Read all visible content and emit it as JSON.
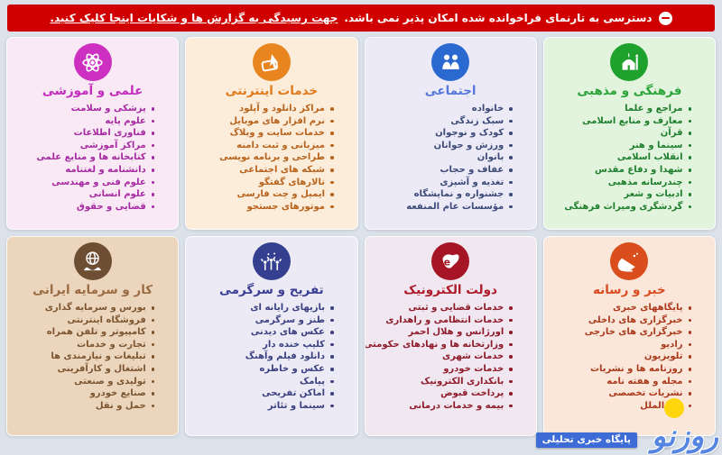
{
  "banner": {
    "message": "دسترسی به تارنمای فراخوانده شده امکان پذیر نمی باشد.",
    "link_text": "جهت رسیدگی به گزارش ها و شکایات اینجا کلیک کنید.",
    "background": "#d10000"
  },
  "categories": [
    {
      "title": "فرهنگی و مذهبی",
      "icon": "mosque-icon",
      "colors": {
        "bg": "#e3f4de",
        "circle": "#1fa12e",
        "title": "#2aa438",
        "item": "#1d7e2b"
      },
      "items": [
        "مراجع و علما",
        "معارف و منابع اسلامی",
        "قرآن",
        "سینما و هنر",
        "انقلاب اسلامی",
        "شهدا و دفاع مقدس",
        "چندرسانه مذهبی",
        "ادبیات و شعر",
        "گردشگری ومیراث فرهنگی"
      ]
    },
    {
      "title": "اجتماعی",
      "icon": "people-icon",
      "colors": {
        "bg": "#eceaf6",
        "circle": "#2a6ad0",
        "title": "#5577dc",
        "item": "#3c4a78"
      },
      "items": [
        "خانواده",
        "سبک زندگی",
        "کودک و نوجوان",
        "ورزش و جوانان",
        "بانوان",
        "عفاف و حجاب",
        "تغذیه و آشپزی",
        "جشنواره و نمایشگاه",
        "مؤسسات عام المنفعه"
      ]
    },
    {
      "title": "خدمات اینترنتی",
      "icon": "click-hand-icon",
      "colors": {
        "bg": "#fcecda",
        "circle": "#e8851f",
        "title": "#e2791a",
        "item": "#b8631c"
      },
      "items": [
        "مراکز دانلود و آپلود",
        "نرم افزار های موبایل",
        "خدمات سایت و وبلاگ",
        "میزبانی و ثبت دامنه",
        "طراحی و برنامه نویسی",
        "شبکه های اجتماعی",
        "تالارهای گفتگو",
        "ایمیل و چت فارسی",
        "موتورهای جستجو"
      ]
    },
    {
      "title": "علمی و آموزشی",
      "icon": "atom-icon",
      "colors": {
        "bg": "#f8e9f5",
        "circle": "#cd30c1",
        "title": "#c32cbe",
        "item": "#a62aa2"
      },
      "items": [
        "پزشکی و سلامت",
        "علوم پایه",
        "فناوری اطلاعات",
        "مراکز آموزشی",
        "کتابخانه ها و منابع علمی",
        "دانشنامه و لغتنامه",
        "علوم فنی و مهندسی",
        "علوم انسانی",
        "قضایی و حقوق"
      ]
    },
    {
      "title": "خبر و رسانه",
      "icon": "satellite-icon",
      "colors": {
        "bg": "#fbe7da",
        "circle": "#d94e1c",
        "title": "#d84a20",
        "item": "#aa3a1c"
      },
      "items": [
        "پایگاههای خبری",
        "خبرگزاری های داخلی",
        "خبرگزاری های خارجی",
        "رادیو",
        "تلویزیون",
        "روزنامه ها و نشریات",
        "مجله و هفته نامه",
        "نشریات تخصصی",
        "بین الملل"
      ]
    },
    {
      "title": "دولت الکترونیک",
      "icon": "iran-map-icon",
      "colors": {
        "bg": "#f0e7f0",
        "circle": "#a51526",
        "title": "#ad1b2a",
        "item": "#8f1b2a"
      },
      "items": [
        "خدمات قضایی و ثبتی",
        "خدمات انتظامی و راهداری",
        "اورژانس و هلال احمر",
        "وزارتخانه ها و نهادهای حکومتی",
        "خدمات شهری",
        "خدمات خودرو",
        "بانکداری الکترونیک",
        "پرداخت قبوض",
        "بیمه و خدمات درمانی"
      ]
    },
    {
      "title": "تفریح و سرگرمی",
      "icon": "celebration-icon",
      "colors": {
        "bg": "#ebeaf5",
        "circle": "#353f90",
        "title": "#3c4095",
        "item": "#3a4080"
      },
      "items": [
        "بازیهای رایانه ای",
        "طنز و سرگرمی",
        "عکس های دیدنی",
        "کلیپ خنده دار",
        "دانلود فیلم وآهنگ",
        "عکس و خاطره",
        "پیامک",
        "اماکن تفریحی",
        "سینما و تئاتر"
      ]
    },
    {
      "title": "کار و سرمایه ایرانی",
      "icon": "globe-hands-icon",
      "colors": {
        "bg": "#ebd5bc",
        "circle": "#6e4e33",
        "title": "#9b6b43",
        "item": "#7c5530"
      },
      "items": [
        "بورس و سرمایه گذاری",
        "فروشگاه اینترنتی",
        "کامپیوتر و تلفن همراه",
        "تجارت و خدمات",
        "تبلیغات و نیازمندی ها",
        "اشتغال و کارآفرینی",
        "تولیدی و صنعتی",
        "صنایع خودرو",
        "حمل و نقل"
      ]
    }
  ],
  "watermark": {
    "logo_text": "روزنو",
    "tagline": "پایگاه خبری تحلیلی",
    "logo_color": "#5585e0",
    "ball_color": "#ffd60a",
    "ribbon_color": "#3d6cd6"
  }
}
